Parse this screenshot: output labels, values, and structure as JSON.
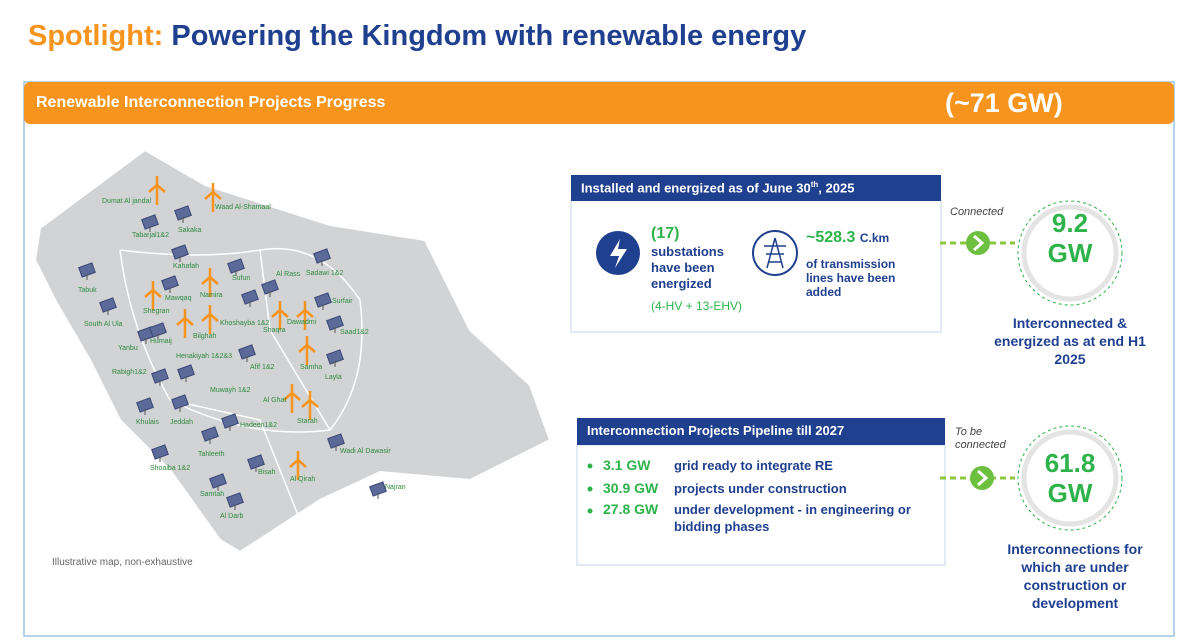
{
  "header": {
    "title_prefix": "Spotlight:",
    "title": "Powering the Kingdom with renewable energy"
  },
  "banner": {
    "title": "Renewable Interconnection Projects Progress",
    "total": "(~71 GW)"
  },
  "map": {
    "note": "Illustrative map, non-exhaustive",
    "sites": [
      "Dumat Al jandal",
      "Waad Al-Shamaal",
      "Tabarjal1&2",
      "Sakaka",
      "Tabuk",
      "Kahafah",
      "Sufun",
      "Al Rass",
      "Sadawi 1&2",
      "Mawqaq",
      "Namira",
      "Surfair",
      "Shegran",
      "South Al Ula",
      "Khoshayba 1&2",
      "Shaqra",
      "Dawadmi",
      "Saad1&2",
      "Yanbu",
      "Humaij",
      "Bilghah",
      "Henakiyah 1&2&3",
      "Afif 1&2",
      "Samha",
      "Layla",
      "Rabigh1&2",
      "Muwayh 1&2",
      "Al Ghat",
      "Khulais",
      "Jeddah",
      "Hadeen1&2",
      "Starah",
      "Tahleeth",
      "Wadi Al Dawasir",
      "Shoaiba 1&2",
      "Bisah",
      "Al Qirah",
      "Najran",
      "Samtah",
      "Al Darb"
    ]
  },
  "installed": {
    "heading": "Installed and energized as of June 30",
    "heading_sup": "th",
    "heading_suffix": ", 2025",
    "substations": {
      "count": "(17)",
      "text": "substations have been energized",
      "detail": "(4-HV + 13-EHV)"
    },
    "lines": {
      "value": "~528.3",
      "unit": "C.km",
      "text": "of transmission lines have been added"
    },
    "status": "Connected",
    "capacity": {
      "value": "9.2",
      "unit": "GW"
    },
    "caption": "Interconnected & energized as at end H1 2025"
  },
  "pipeline": {
    "heading": "Interconnection Projects Pipeline till 2027",
    "items": [
      {
        "value": "3.1 GW",
        "text": "grid ready to integrate RE"
      },
      {
        "value": "30.9 GW",
        "text": "projects under construction"
      },
      {
        "value": "27.8 GW",
        "text": "under development - in engineering or bidding phases"
      }
    ],
    "status": "To be connected",
    "capacity": {
      "value": "61.8",
      "unit": "GW"
    },
    "caption": "Interconnections for which are under construction or development"
  }
}
